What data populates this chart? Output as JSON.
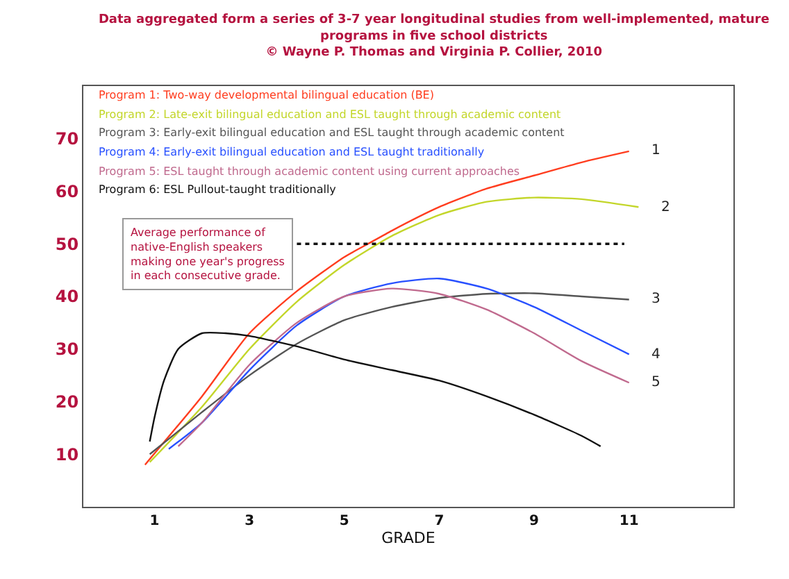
{
  "chart_data": {
    "type": "line",
    "title": "Data aggregated form a series of 3-7 year longitudinal studies from well-implemented, mature programs in five school districts",
    "subtitle": "© Wayne P. Thomas and Virginia P. Collier, 2010",
    "xlabel": "GRADE",
    "xlim": [
      -0.5,
      13.2
    ],
    "ylim": [
      0,
      80
    ],
    "xticks": [
      1,
      3,
      5,
      7,
      9,
      11
    ],
    "yticks": [
      10,
      20,
      30,
      40,
      50,
      60,
      70
    ],
    "legend": false,
    "marker": "none",
    "series": [
      {
        "name": "Program 1: Two-way developmental bilingual education (BE)",
        "color": "#ff3d1f",
        "x": [
          0.8,
          2,
          3,
          4,
          5,
          5.5,
          6,
          7,
          8,
          9,
          10,
          11
        ],
        "values": [
          8,
          21,
          33,
          41,
          47.5,
          50,
          52.5,
          57,
          60.5,
          63,
          65.5,
          67.6
        ]
      },
      {
        "name": "Program 2: Late-exit bilingual education and ESL taught through academic content",
        "color": "#c3d62a",
        "x": [
          0.9,
          2,
          3,
          4,
          5,
          6,
          7,
          8,
          9,
          10,
          11.2
        ],
        "values": [
          8.5,
          19,
          30,
          39,
          46,
          51.5,
          55.5,
          58,
          58.8,
          58.5,
          57
        ]
      },
      {
        "name": "Program 3: Early-exit bilingual education and ESL taught through academic content",
        "color": "#555555",
        "x": [
          0.9,
          2,
          3,
          4,
          5,
          6,
          7,
          8,
          9,
          10,
          11
        ],
        "values": [
          10,
          18,
          25,
          31,
          35.5,
          38,
          39.7,
          40.5,
          40.6,
          40,
          39.4
        ]
      },
      {
        "name": "Program 4: Early-exit bilingual education and ESL taught traditionally",
        "color": "#2850ff",
        "x": [
          1.3,
          2,
          3,
          4,
          5,
          6,
          7,
          8,
          9,
          10,
          11
        ],
        "values": [
          11,
          16,
          26,
          34.5,
          40,
          42.5,
          43.4,
          41.5,
          38,
          33.5,
          29
        ]
      },
      {
        "name": "Program 5: ESL taught through academic content using current approaches",
        "color": "#c06a8e",
        "x": [
          1.5,
          2,
          3,
          4,
          5,
          6,
          7,
          8,
          9,
          10,
          11
        ],
        "values": [
          11.5,
          16,
          27,
          35,
          40,
          41.5,
          40.5,
          37.5,
          33,
          27.7,
          23.6
        ]
      },
      {
        "name": "Program 6: ESL Pullout-taught traditionally",
        "color": "#111111",
        "x": [
          0.9,
          1.0,
          1.2,
          1.5,
          2.0,
          2.5,
          3,
          4,
          5,
          6,
          7,
          8,
          9,
          10,
          10.4
        ],
        "values": [
          12.4,
          17,
          24,
          30,
          33,
          33,
          32.5,
          30.5,
          28,
          26,
          24,
          21,
          17.5,
          13.5,
          11.5
        ]
      },
      {
        "color": "#111111",
        "line_style": "dotted",
        "x": [
          4,
          10.9
        ],
        "values": [
          50,
          50
        ]
      }
    ],
    "annotations": [
      "Average performance of native-English speakers making one year's progress in each consecutive grade.",
      "1",
      "2",
      "3",
      "4",
      "5"
    ]
  }
}
